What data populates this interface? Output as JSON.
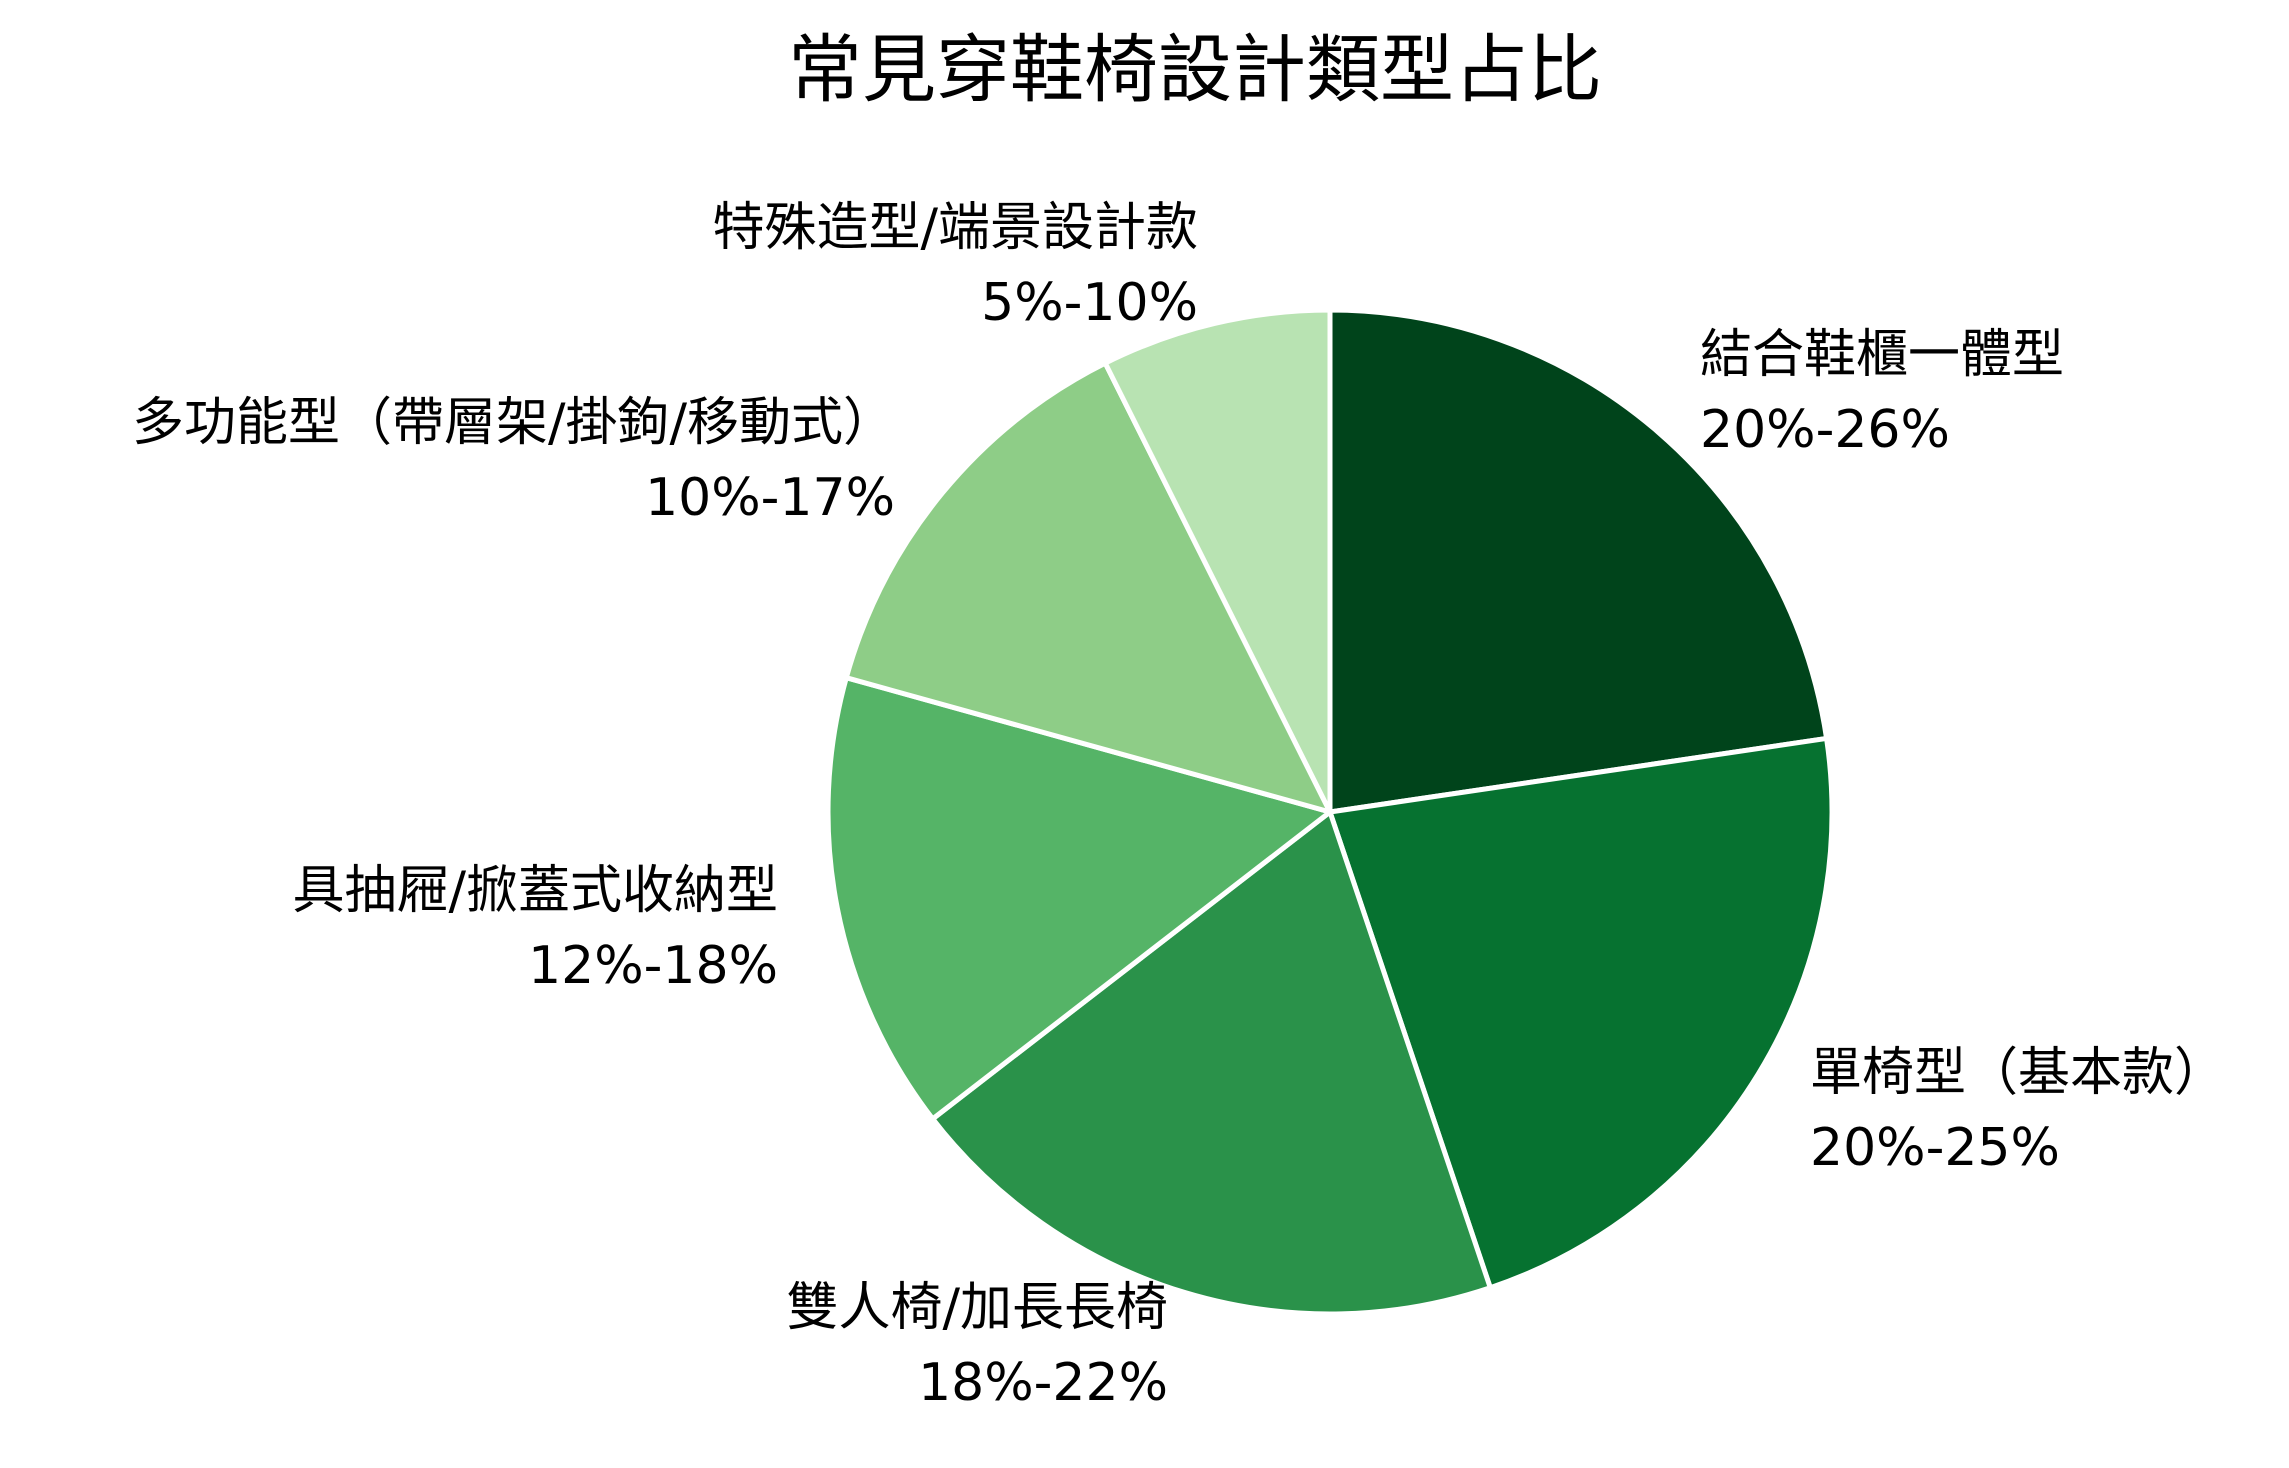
{
  "chart_data": {
    "type": "pie",
    "title": "常見穿鞋椅設計類型占比",
    "slices": [
      {
        "label": "結合鞋櫃一體型",
        "range": "20%-26%",
        "value": 23,
        "color": "#00441b"
      },
      {
        "label": "單椅型（基本款）",
        "range": "20%-25%",
        "value": 22.5,
        "color": "#067230"
      },
      {
        "label": "雙人椅/加長長椅",
        "range": "18%-22%",
        "value": 20,
        "color": "#2a924a"
      },
      {
        "label": "具抽屜/掀蓋式收納型",
        "range": "12%-18%",
        "value": 15,
        "color": "#55b467"
      },
      {
        "label": "多功能型（帶層架/掛鉤/移動式）",
        "range": "10%-17%",
        "value": 13.5,
        "color": "#8ecd87"
      },
      {
        "label": "特殊造型/端景設計款",
        "range": "5%-10%",
        "value": 7.5,
        "color": "#b8e3b2"
      }
    ]
  }
}
